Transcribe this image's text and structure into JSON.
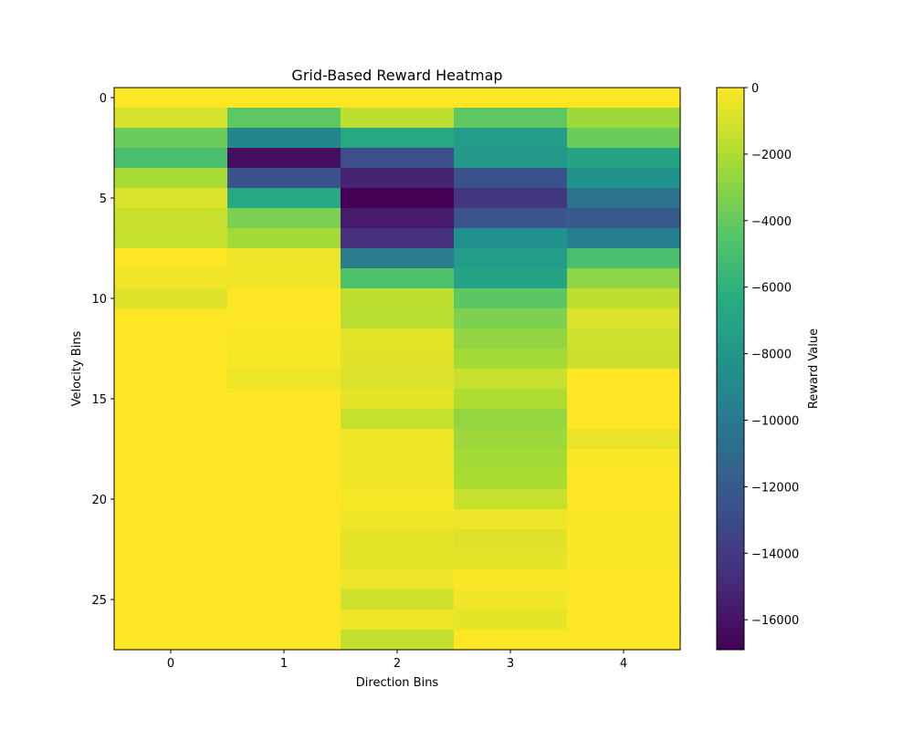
{
  "chart_data": {
    "type": "heatmap",
    "title": "Grid-Based Reward Heatmap",
    "xlabel": "Direction Bins",
    "ylabel": "Velocity Bins",
    "colorbar_label": "Reward Value",
    "colormap": "viridis",
    "vmin": -16900,
    "vmax": 0,
    "x_categories": [
      0,
      1,
      2,
      3,
      4
    ],
    "y_categories": [
      0,
      1,
      2,
      3,
      4,
      5,
      6,
      7,
      8,
      9,
      10,
      11,
      12,
      13,
      14,
      15,
      16,
      17,
      18,
      19,
      20,
      21,
      22,
      23,
      24,
      25,
      26,
      27
    ],
    "x_tick_labels": [
      "0",
      "1",
      "2",
      "3",
      "4"
    ],
    "y_tick_labels": [
      "0",
      "5",
      "10",
      "15",
      "20",
      "25"
    ],
    "y_tick_values": [
      0,
      5,
      10,
      15,
      20,
      25
    ],
    "colorbar_tick_labels": [
      "0",
      "−2000",
      "−4000",
      "−6000",
      "−8000",
      "−10000",
      "−12000",
      "−14000",
      "−16000"
    ],
    "colorbar_tick_values": [
      0,
      -2000,
      -4000,
      -6000,
      -8000,
      -10000,
      -12000,
      -14000,
      -16000
    ],
    "values": [
      [
        0,
        0,
        0,
        0,
        0
      ],
      [
        -1000,
        -4200,
        -1600,
        -4200,
        -2400
      ],
      [
        -3800,
        -9200,
        -6600,
        -7500,
        -3800
      ],
      [
        -5000,
        -16200,
        -12800,
        -7800,
        -7000
      ],
      [
        -2200,
        -12600,
        -15200,
        -12700,
        -8200
      ],
      [
        -900,
        -6700,
        -16900,
        -14100,
        -10400
      ],
      [
        -1300,
        -3400,
        -15600,
        -12400,
        -12000
      ],
      [
        -1400,
        -2300,
        -14600,
        -8400,
        -9600
      ],
      [
        0,
        -400,
        -9800,
        -7600,
        -5000
      ],
      [
        -300,
        -300,
        -4800,
        -7000,
        -2900
      ],
      [
        -800,
        0,
        -1600,
        -4300,
        -1600
      ],
      [
        0,
        0,
        -1700,
        -3300,
        -900
      ],
      [
        0,
        -100,
        -600,
        -2800,
        -1200
      ],
      [
        0,
        -200,
        -700,
        -2300,
        -1300
      ],
      [
        0,
        -400,
        -900,
        -1400,
        0
      ],
      [
        0,
        0,
        -600,
        -2000,
        0
      ],
      [
        0,
        0,
        -1400,
        -2700,
        0
      ],
      [
        0,
        0,
        -300,
        -2500,
        -500
      ],
      [
        0,
        0,
        -300,
        -2300,
        -100
      ],
      [
        0,
        0,
        -300,
        -2100,
        0
      ],
      [
        0,
        0,
        -200,
        -1400,
        0
      ],
      [
        0,
        0,
        -300,
        -400,
        -100
      ],
      [
        0,
        0,
        -600,
        -800,
        -100
      ],
      [
        0,
        0,
        -600,
        -600,
        -100
      ],
      [
        0,
        0,
        -400,
        -100,
        0
      ],
      [
        0,
        0,
        -1200,
        -300,
        0
      ],
      [
        0,
        0,
        -300,
        -600,
        0
      ],
      [
        0,
        0,
        -1500,
        0,
        0
      ]
    ]
  }
}
